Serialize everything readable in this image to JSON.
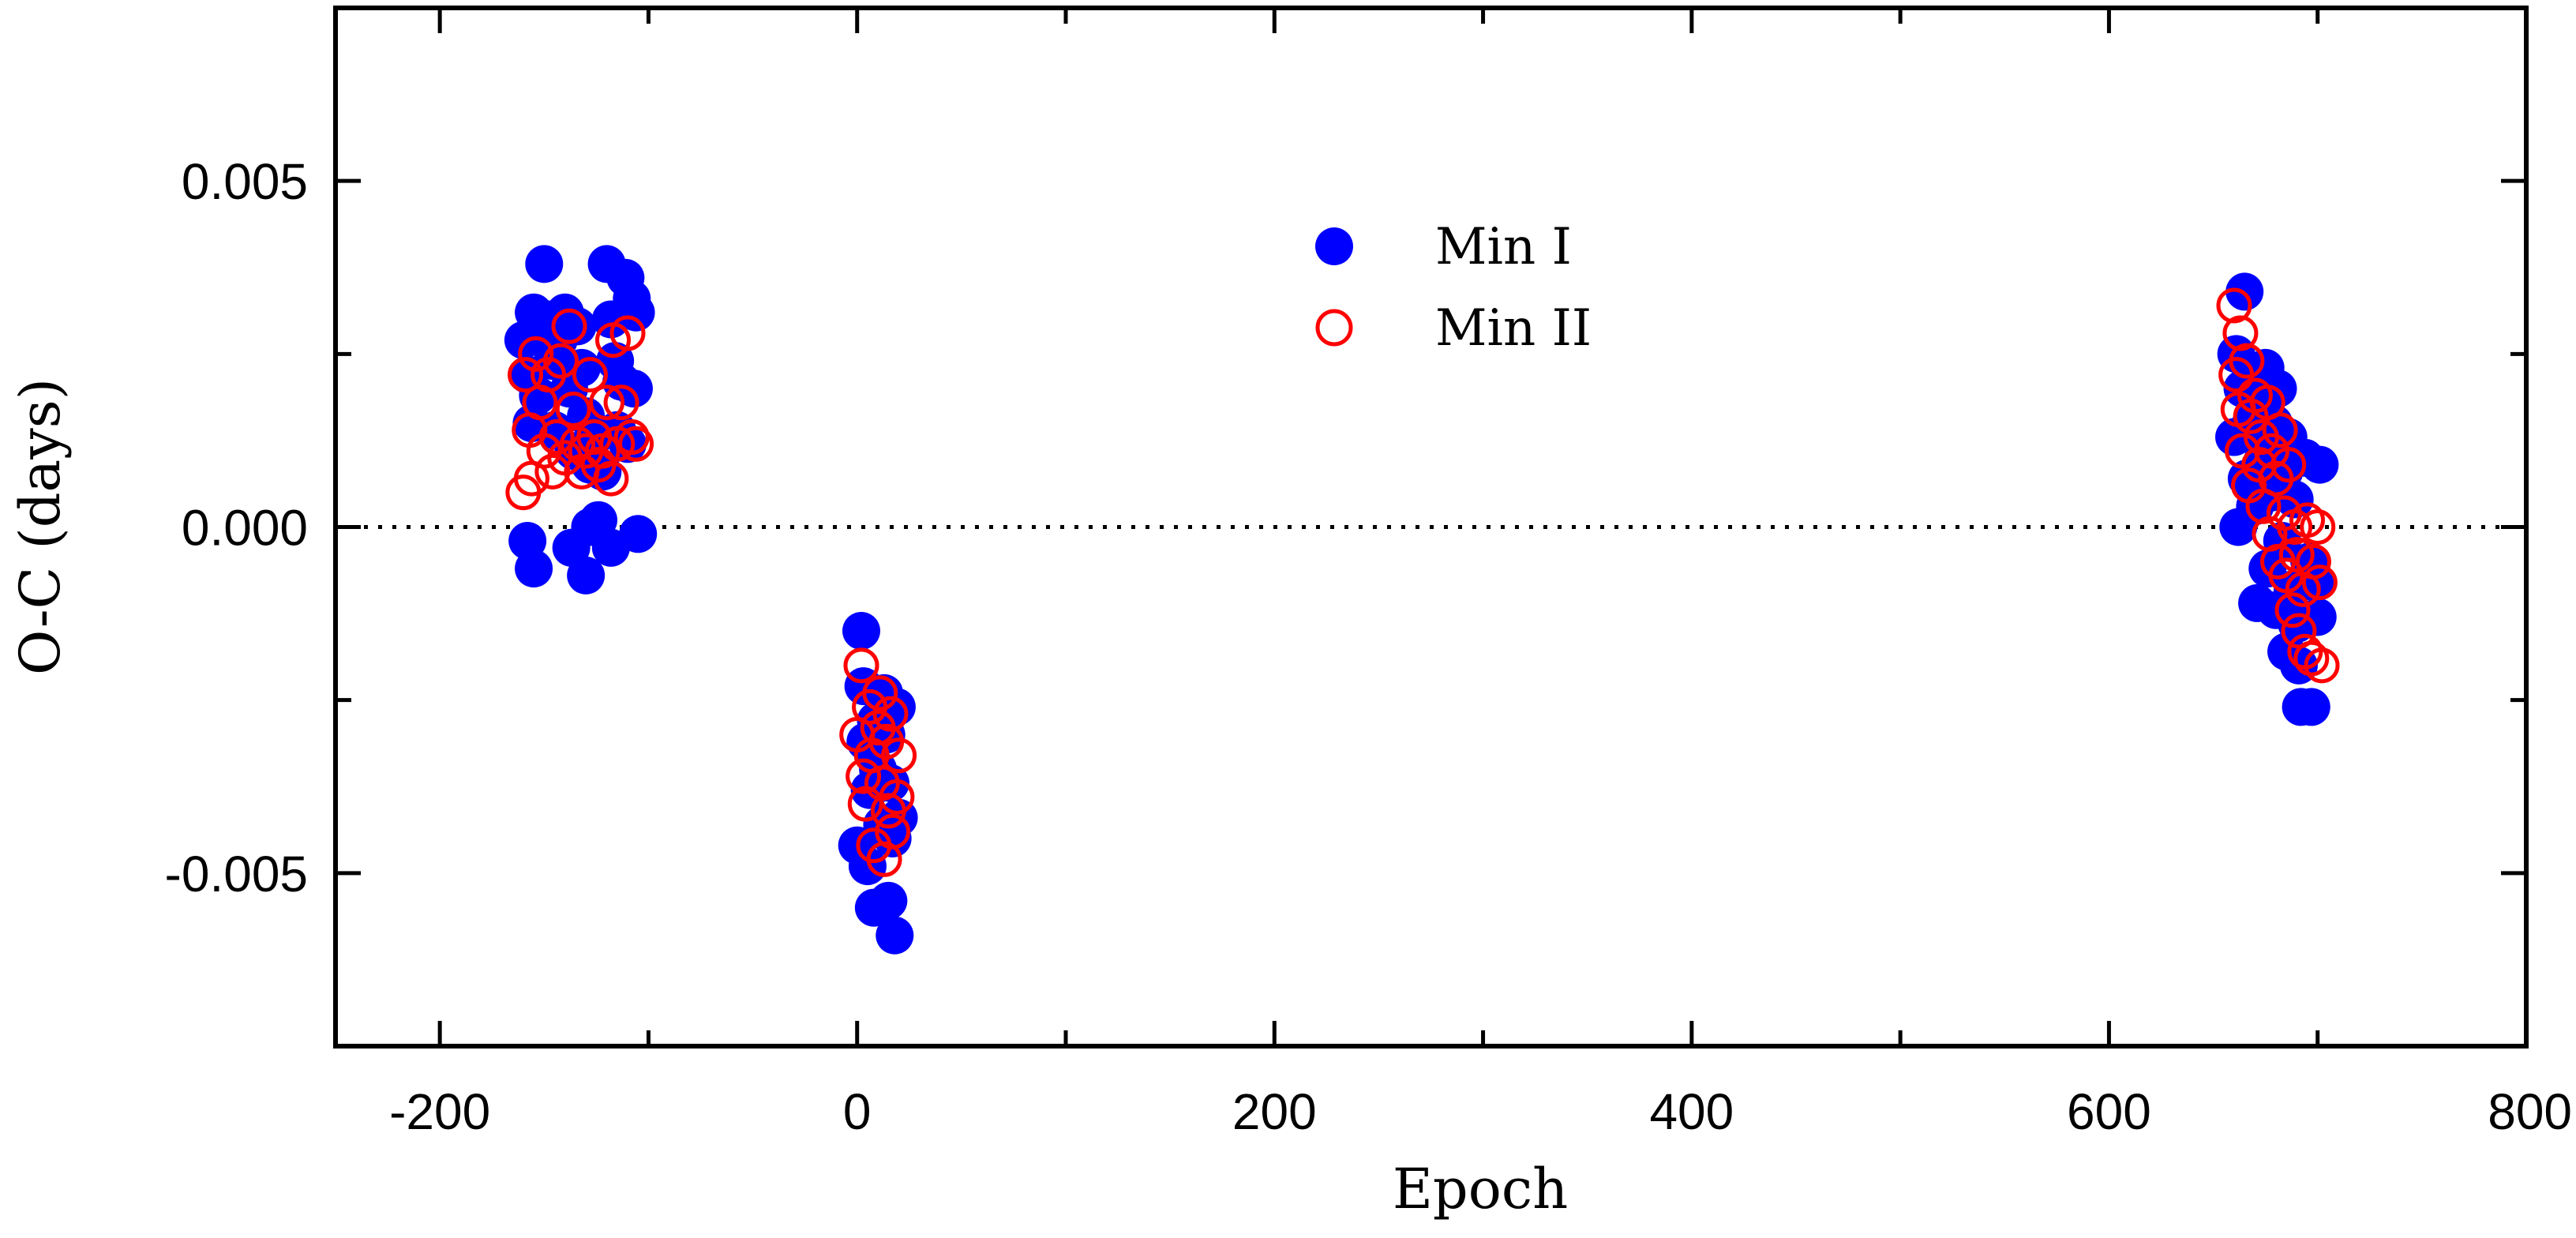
{
  "chart_data": {
    "type": "scatter",
    "title": "",
    "xlabel": "Epoch",
    "ylabel": "O-C (days)",
    "xlim": [
      -250,
      800
    ],
    "ylim": [
      -0.0075,
      0.0075
    ],
    "x_ticks": [
      "-200",
      "0",
      "200",
      "400",
      "600",
      "800"
    ],
    "y_ticks": [
      "0.005",
      "0.000",
      "-0.005"
    ],
    "x_tick_values": [
      -200,
      0,
      200,
      400,
      600,
      800
    ],
    "y_tick_values": [
      0.005,
      0.0,
      -0.005
    ],
    "x_minor_tick_values": [
      -100,
      100,
      300,
      500,
      700
    ],
    "y_minor_tick_values": [
      0.0025,
      -0.0025
    ],
    "zero_line": {
      "y": 0.0,
      "style": "dotted"
    },
    "legend": {
      "position": "top-center"
    },
    "colors": {
      "min_i": "#0000ff",
      "min_ii": "#ff0000"
    },
    "series": [
      {
        "name": "Min I",
        "marker": "filled-circle",
        "points": [
          [
            -160,
            0.0027
          ],
          [
            -158,
            0.0022
          ],
          [
            -156,
            0.0015
          ],
          [
            -155,
            0.0031
          ],
          [
            -153,
            0.0019
          ],
          [
            -150,
            0.0038
          ],
          [
            -148,
            0.003
          ],
          [
            -146,
            0.0024
          ],
          [
            -145,
            0.0014
          ],
          [
            -143,
            0.0027
          ],
          [
            -140,
            0.0031
          ],
          [
            -138,
            0.002
          ],
          [
            -136,
            0.0011
          ],
          [
            -134,
            0.0029
          ],
          [
            -132,
            0.0023
          ],
          [
            -130,
            0.0016
          ],
          [
            -128,
            0.0009
          ],
          [
            -126,
            0.0013
          ],
          [
            -124,
            0.0001
          ],
          [
            -122,
            0.0008
          ],
          [
            -120,
            0.0038
          ],
          [
            -118,
            0.003
          ],
          [
            -116,
            0.0024
          ],
          [
            -115,
            0.0014
          ],
          [
            -113,
            0.0021
          ],
          [
            -111,
            0.0036
          ],
          [
            -110,
            0.0012
          ],
          [
            -108,
            0.0033
          ],
          [
            -107,
            0.002
          ],
          [
            -106,
            0.0031
          ],
          [
            -158,
            -0.0002
          ],
          [
            -155,
            -0.0006
          ],
          [
            -137,
            -0.0003
          ],
          [
            -130,
            -0.0007
          ],
          [
            -128,
            0.0
          ],
          [
            -118,
            -0.0003
          ],
          [
            -105,
            -0.0001
          ],
          [
            0,
            -0.0046
          ],
          [
            2,
            -0.0015
          ],
          [
            3,
            -0.0023
          ],
          [
            4,
            -0.0031
          ],
          [
            5,
            -0.0049
          ],
          [
            6,
            -0.0038
          ],
          [
            8,
            -0.0055
          ],
          [
            9,
            -0.0028
          ],
          [
            10,
            -0.0035
          ],
          [
            12,
            -0.0043
          ],
          [
            13,
            -0.0024
          ],
          [
            14,
            -0.003
          ],
          [
            15,
            -0.0054
          ],
          [
            16,
            -0.0037
          ],
          [
            17,
            -0.0045
          ],
          [
            18,
            -0.0059
          ],
          [
            19,
            -0.0026
          ],
          [
            20,
            -0.0042
          ],
          [
            660,
            0.0013
          ],
          [
            661,
            0.0025
          ],
          [
            662,
            0.0
          ],
          [
            664,
            0.002
          ],
          [
            665,
            0.0034
          ],
          [
            666,
            0.0007
          ],
          [
            668,
            0.0015
          ],
          [
            670,
            0.0003
          ],
          [
            671,
            -0.0011
          ],
          [
            672,
            0.0018
          ],
          [
            674,
            0.001
          ],
          [
            675,
            0.0023
          ],
          [
            676,
            -0.0006
          ],
          [
            678,
            0.0005
          ],
          [
            679,
            0.0015
          ],
          [
            680,
            -0.0012
          ],
          [
            681,
            0.002
          ],
          [
            683,
            -0.0002
          ],
          [
            684,
            0.0008
          ],
          [
            685,
            -0.0018
          ],
          [
            686,
            0.0013
          ],
          [
            688,
            -0.0009
          ],
          [
            689,
            0.0004
          ],
          [
            690,
            -0.0014
          ],
          [
            691,
            -0.002
          ],
          [
            692,
            -0.0026
          ],
          [
            694,
            0.001
          ],
          [
            696,
            -0.0005
          ],
          [
            697,
            -0.0026
          ],
          [
            699,
            -0.0008
          ],
          [
            700,
            -0.0013
          ],
          [
            701,
            0.0009
          ]
        ]
      },
      {
        "name": "Min II",
        "marker": "open-circle",
        "points": [
          [
            -160,
            0.0005
          ],
          [
            -159,
            0.0022
          ],
          [
            -157,
            0.0014
          ],
          [
            -156,
            0.0007
          ],
          [
            -154,
            0.0025
          ],
          [
            -152,
            0.0018
          ],
          [
            -150,
            0.0011
          ],
          [
            -148,
            0.0022
          ],
          [
            -146,
            0.0008
          ],
          [
            -144,
            0.0013
          ],
          [
            -142,
            0.0024
          ],
          [
            -140,
            0.001
          ],
          [
            -138,
            0.0029
          ],
          [
            -136,
            0.0017
          ],
          [
            -134,
            0.0012
          ],
          [
            -132,
            0.0008
          ],
          [
            -130,
            0.0011
          ],
          [
            -128,
            0.0022
          ],
          [
            -126,
            0.0013
          ],
          [
            -124,
            0.0009
          ],
          [
            -122,
            0.0011
          ],
          [
            -120,
            0.0018
          ],
          [
            -118,
            0.0007
          ],
          [
            -117,
            0.0027
          ],
          [
            -115,
            0.0012
          ],
          [
            -113,
            0.0018
          ],
          [
            -110,
            0.0028
          ],
          [
            -108,
            0.0013
          ],
          [
            -106,
            0.0012
          ],
          [
            0,
            -0.003
          ],
          [
            2,
            -0.002
          ],
          [
            3,
            -0.0036
          ],
          [
            4,
            -0.004
          ],
          [
            6,
            -0.0026
          ],
          [
            7,
            -0.0033
          ],
          [
            8,
            -0.0046
          ],
          [
            10,
            -0.0029
          ],
          [
            11,
            -0.0024
          ],
          [
            12,
            -0.0037
          ],
          [
            13,
            -0.0048
          ],
          [
            14,
            -0.0031
          ],
          [
            15,
            -0.0041
          ],
          [
            16,
            -0.0027
          ],
          [
            17,
            -0.0044
          ],
          [
            19,
            -0.0039
          ],
          [
            20,
            -0.0033
          ],
          [
            660,
            0.0032
          ],
          [
            661,
            0.0022
          ],
          [
            662,
            0.0017
          ],
          [
            663,
            0.0028
          ],
          [
            664,
            0.0011
          ],
          [
            666,
            0.0024
          ],
          [
            667,
            0.0006
          ],
          [
            668,
            0.0016
          ],
          [
            670,
            0.0019
          ],
          [
            672,
            0.0009
          ],
          [
            673,
            0.0013
          ],
          [
            674,
            0.0003
          ],
          [
            676,
            0.0018
          ],
          [
            677,
            -0.0001
          ],
          [
            678,
            0.0011
          ],
          [
            680,
            0.0007
          ],
          [
            681,
            -0.0005
          ],
          [
            682,
            0.0014
          ],
          [
            684,
            0.0002
          ],
          [
            685,
            -0.0007
          ],
          [
            686,
            0.0009
          ],
          [
            688,
            -0.0012
          ],
          [
            689,
            0.0
          ],
          [
            690,
            -0.0004
          ],
          [
            691,
            -0.0015
          ],
          [
            693,
            -0.0009
          ],
          [
            694,
            -0.0018
          ],
          [
            695,
            0.0001
          ],
          [
            697,
            -0.0019
          ],
          [
            698,
            -0.0005
          ],
          [
            700,
            0.0
          ],
          [
            701,
            -0.0008
          ],
          [
            702,
            -0.002
          ]
        ]
      }
    ]
  }
}
